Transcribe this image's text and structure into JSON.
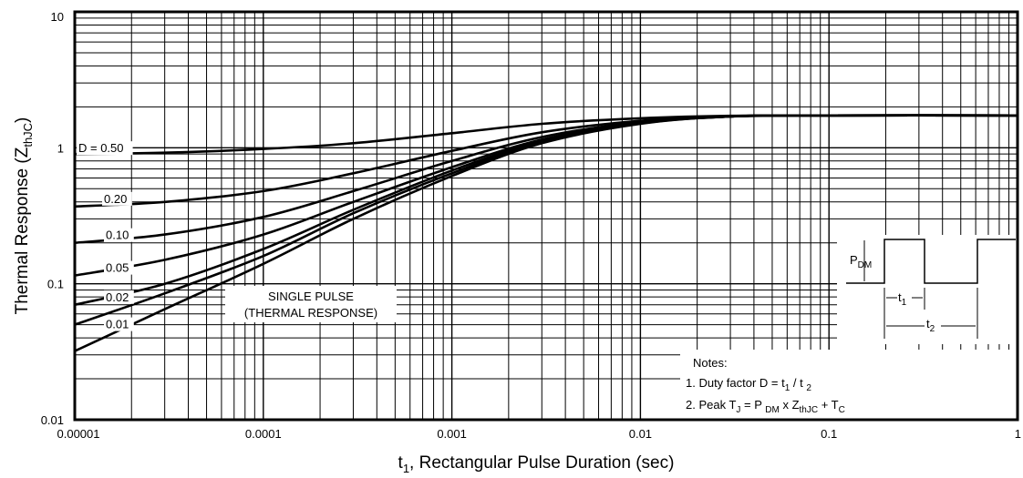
{
  "chart_data": {
    "type": "line",
    "xscale": "log",
    "yscale": "log",
    "xlim": [
      1e-05,
      1
    ],
    "ylim": [
      0.01,
      10
    ],
    "grid": true,
    "xlabel": {
      "prefix": "t",
      "sub": "1",
      "rest": ", Rectangular Pulse Duration (sec)"
    },
    "ylabel": {
      "main": "Thermal Response (Z",
      "sub": "thJC",
      "close": ")"
    },
    "x_ticks": [
      {
        "v": 1e-05,
        "label": "0.00001"
      },
      {
        "v": 0.0001,
        "label": "0.0001"
      },
      {
        "v": 0.001,
        "label": "0.001"
      },
      {
        "v": 0.01,
        "label": "0.01"
      },
      {
        "v": 0.1,
        "label": "0.1"
      },
      {
        "v": 1,
        "label": "1"
      }
    ],
    "y_ticks": [
      {
        "v": 0.01,
        "label": "0.01"
      },
      {
        "v": 0.1,
        "label": "0.1"
      },
      {
        "v": 1,
        "label": "1"
      },
      {
        "v": 10,
        "label": "10"
      }
    ],
    "series": [
      {
        "name": "D = 0.50",
        "x": [
          1e-05,
          3e-05,
          0.0001,
          0.0003,
          0.001,
          0.003,
          0.01,
          0.03,
          0.1,
          1
        ],
        "y": [
          0.9,
          0.92,
          0.98,
          1.08,
          1.28,
          1.5,
          1.65,
          1.72,
          1.73,
          1.73
        ]
      },
      {
        "name": "0.20",
        "x": [
          1e-05,
          3e-05,
          0.0001,
          0.0003,
          0.001,
          0.003,
          0.01,
          0.03,
          0.1,
          1
        ],
        "y": [
          0.37,
          0.4,
          0.48,
          0.65,
          0.95,
          1.3,
          1.58,
          1.7,
          1.73,
          1.73
        ]
      },
      {
        "name": "0.10",
        "x": [
          1e-05,
          3e-05,
          0.0001,
          0.0003,
          0.001,
          0.003,
          0.01,
          0.03,
          0.1,
          1
        ],
        "y": [
          0.2,
          0.23,
          0.31,
          0.48,
          0.8,
          1.2,
          1.55,
          1.7,
          1.73,
          1.73
        ]
      },
      {
        "name": "0.05",
        "x": [
          1e-05,
          3e-05,
          0.0001,
          0.0003,
          0.001,
          0.003,
          0.01,
          0.03,
          0.1,
          1
        ],
        "y": [
          0.115,
          0.15,
          0.23,
          0.4,
          0.72,
          1.15,
          1.53,
          1.7,
          1.73,
          1.73
        ]
      },
      {
        "name": "0.02",
        "x": [
          1e-05,
          3e-05,
          0.0001,
          0.0003,
          0.001,
          0.003,
          0.01,
          0.03,
          0.1,
          1
        ],
        "y": [
          0.07,
          0.1,
          0.18,
          0.35,
          0.68,
          1.12,
          1.52,
          1.7,
          1.73,
          1.73
        ]
      },
      {
        "name": "0.01",
        "x": [
          1e-05,
          3e-05,
          0.0001,
          0.0003,
          0.001,
          0.003,
          0.01,
          0.03,
          0.1,
          1
        ],
        "y": [
          0.05,
          0.085,
          0.16,
          0.33,
          0.65,
          1.1,
          1.51,
          1.7,
          1.73,
          1.73
        ]
      },
      {
        "name": "SINGLE PULSE",
        "x": [
          1e-05,
          3e-05,
          0.0001,
          0.0003,
          0.001,
          0.003,
          0.01,
          0.03,
          0.1,
          1
        ],
        "y": [
          0.032,
          0.065,
          0.14,
          0.3,
          0.62,
          1.08,
          1.5,
          1.7,
          1.73,
          1.73
        ]
      }
    ],
    "annotations": {
      "single_pulse_line1": "SINGLE PULSE",
      "single_pulse_line2": "(THERMAL RESPONSE)",
      "pdm_main": "P",
      "pdm_sub": "DM",
      "t1_main": "t",
      "t1_sub": "1",
      "t2_main": "t",
      "t2_sub": "2",
      "notes_title": "Notes:",
      "note1_main": "1. Duty factor D =  t",
      "note1_sub1": "1",
      "note1_mid": " / t ",
      "note1_sub2": "2",
      "note2_main": "2. Peak T",
      "note2_subJ": "J",
      "note2_mid1": " = P ",
      "note2_subDM": "DM",
      "note2_mid2": " x  Z",
      "note2_subthJC": "thJC",
      "note2_mid3": "  + T",
      "note2_subC": "C"
    }
  }
}
